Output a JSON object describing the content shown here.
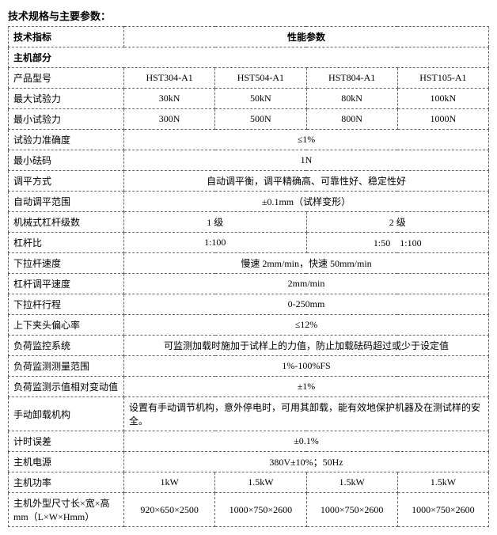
{
  "title": "技术规格与主要参数：",
  "header": {
    "col1": "技术指标",
    "col2": "性能参数"
  },
  "section1": "主机部分",
  "rows": {
    "model": {
      "label": "产品型号",
      "v": [
        "HST304-A1",
        "HST504-A1",
        "HST804-A1",
        "HST105-A1"
      ]
    },
    "maxForce": {
      "label": "最大试验力",
      "v": [
        "30kN",
        "50kN",
        "80kN",
        "100kN"
      ]
    },
    "minForce": {
      "label": "最小试验力",
      "v": [
        "300N",
        "500N",
        "800N",
        "1000N"
      ]
    },
    "accuracy": {
      "label": "试验力准确度",
      "v": "≤1%"
    },
    "minWeight": {
      "label": "最小砝码",
      "v": "1N"
    },
    "levelMethod": {
      "label": "调平方式",
      "v": "自动调平衡，调平精确高、可靠性好、稳定性好"
    },
    "autoLevel": {
      "label": "自动调平范围",
      "v": "±0.1mm（试样变形）"
    },
    "leverGrade": {
      "label": "机械式杠杆级数",
      "v": [
        "1 级",
        "2 级"
      ]
    },
    "leverRatio": {
      "label": "杠杆比",
      "v": [
        "1:100",
        "1:50　1:100"
      ]
    },
    "pullSpeed": {
      "label": "下拉杆速度",
      "v": "慢速 2mm/min，快速 50mm/min"
    },
    "leverAdjSpeed": {
      "label": "杠杆调平速度",
      "v": "2mm/min"
    },
    "pullStroke": {
      "label": "下拉杆行程",
      "v": "0-250mm"
    },
    "eccentric": {
      "label": "上下夹头偏心率",
      "v": "≤12%"
    },
    "loadMonitor": {
      "label": "负荷监控系统",
      "v": "可监测加载时施加于试样上的力值，防止加载砝码超过或少于设定值"
    },
    "loadRange": {
      "label": "负荷监测测量范围",
      "v": "1%-100%FS"
    },
    "loadRelVar": {
      "label": "负荷监测示值相对变动值",
      "v": "±1%"
    },
    "unload": {
      "label": "手动卸载机构",
      "v": "设置有手动调节机构，意外停电时，可用其卸载，能有效地保护机器及在测试样的安全。"
    },
    "timeErr": {
      "label": "计时误差",
      "v": "±0.1%"
    },
    "power": {
      "label": "主机电源",
      "v": "380V±10%；50Hz"
    },
    "mainPower": {
      "label": "主机功率",
      "v": [
        "1kW",
        "1.5kW",
        "1.5kW",
        "1.5kW"
      ]
    },
    "size": {
      "label": "主机外型尺寸长×宽×高mm（L×W×Hmm）",
      "v": [
        "920×650×2500",
        "1000×750×2600",
        "1000×750×2600",
        "1000×750×2600"
      ]
    }
  }
}
